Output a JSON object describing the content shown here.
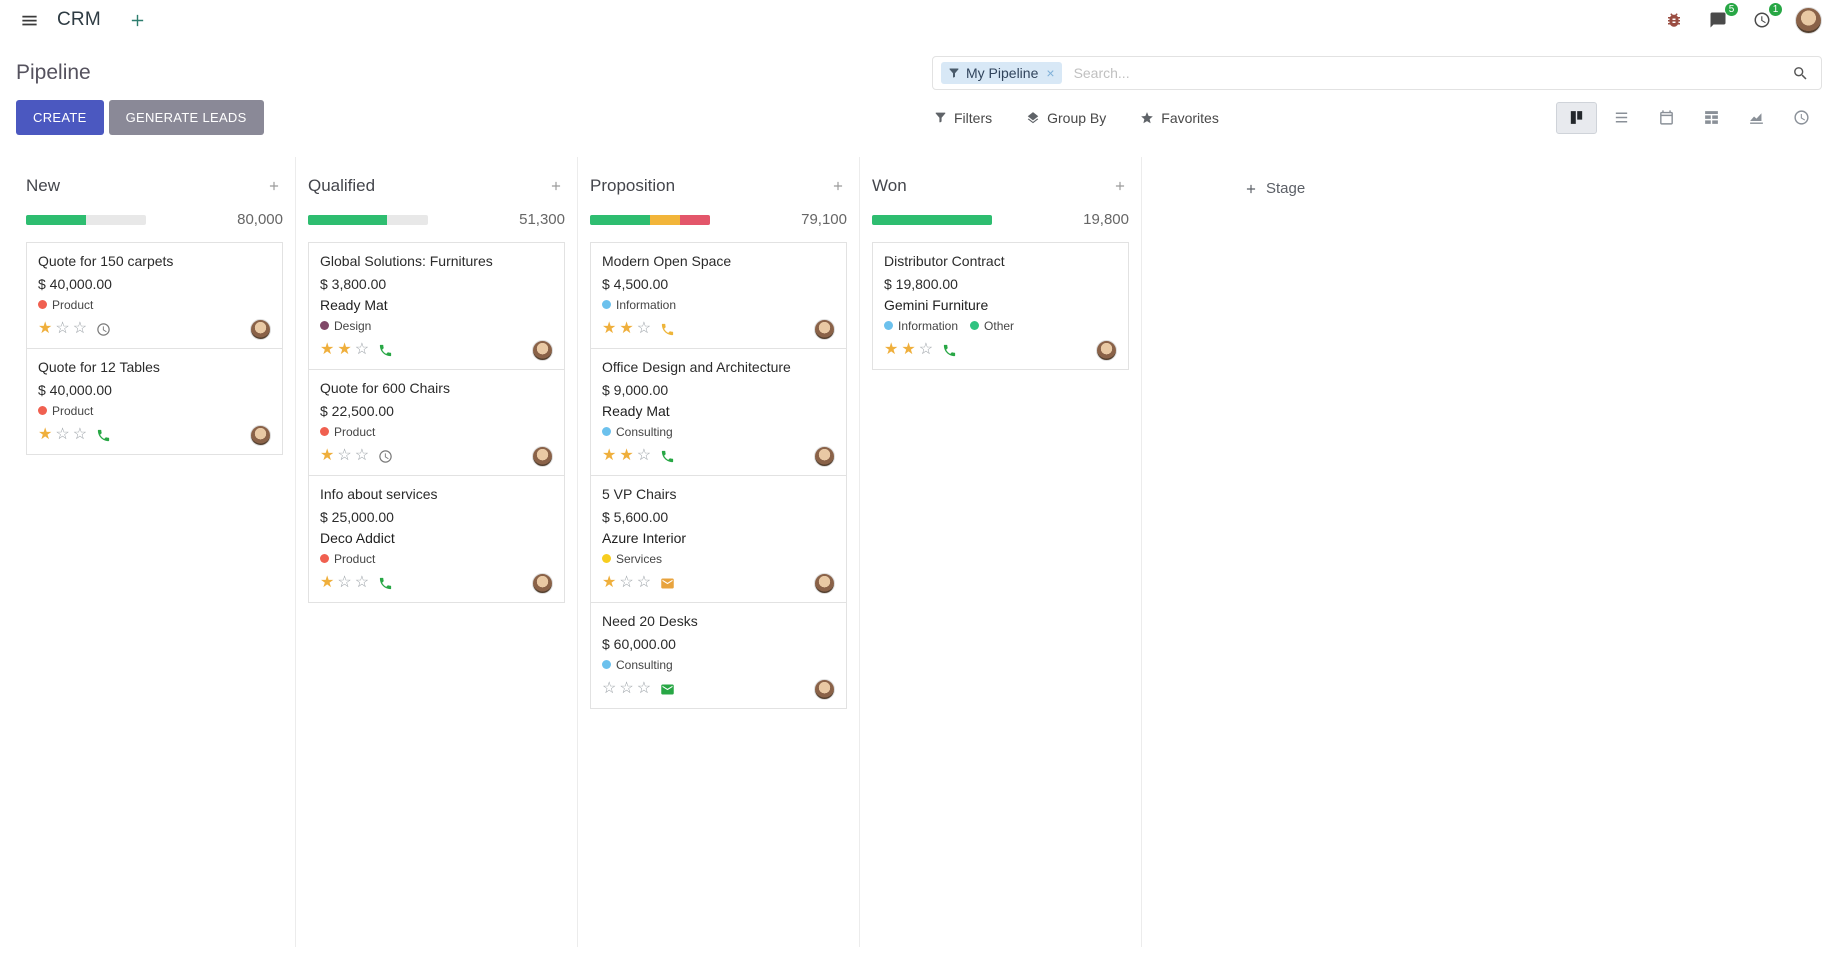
{
  "colors": {
    "accent": "#4b58c0",
    "button_secondary": "#8a8997",
    "badge_green": "#28a745",
    "facet_bg": "#d8e8f6",
    "star_gold": "#efaf3c"
  },
  "topbar": {
    "app_name": "CRM",
    "messages_badge": "5",
    "activities_badge": "1"
  },
  "control_panel": {
    "title": "Pipeline",
    "create_label": "CREATE",
    "generate_leads_label": "GENERATE LEADS",
    "search": {
      "facet_label": "My Pipeline",
      "placeholder": "Search..."
    },
    "filters_label": "Filters",
    "group_by_label": "Group By",
    "favorites_label": "Favorites"
  },
  "kanban": {
    "add_stage_label": "Stage",
    "columns": [
      {
        "name": "New",
        "total": "80,000",
        "progress": [
          {
            "color": "#2ebd70",
            "pct": 50
          }
        ],
        "cards": [
          {
            "title": "Quote for 150 carpets",
            "amount": "$ 40,000.00",
            "partner": "",
            "tags": [
              {
                "label": "Product",
                "color": "#f06050"
              }
            ],
            "stars": 1,
            "activity": {
              "icon": "clock",
              "color": "#7a7a7a"
            }
          },
          {
            "title": "Quote for 12 Tables",
            "amount": "$ 40,000.00",
            "partner": "",
            "tags": [
              {
                "label": "Product",
                "color": "#f06050"
              }
            ],
            "stars": 1,
            "activity": {
              "icon": "phone",
              "color": "#28a745"
            }
          }
        ]
      },
      {
        "name": "Qualified",
        "total": "51,300",
        "progress": [
          {
            "color": "#2ebd70",
            "pct": 66
          }
        ],
        "cards": [
          {
            "title": "Global Solutions: Furnitures",
            "amount": "$ 3,800.00",
            "partner": "Ready Mat",
            "tags": [
              {
                "label": "Design",
                "color": "#814968"
              }
            ],
            "stars": 2,
            "activity": {
              "icon": "phone",
              "color": "#28a745"
            }
          },
          {
            "title": "Quote for 600 Chairs",
            "amount": "$ 22,500.00",
            "partner": "",
            "tags": [
              {
                "label": "Product",
                "color": "#f06050"
              }
            ],
            "stars": 1,
            "activity": {
              "icon": "clock",
              "color": "#7a7a7a"
            }
          },
          {
            "title": "Info about services",
            "amount": "$ 25,000.00",
            "partner": "Deco Addict",
            "tags": [
              {
                "label": "Product",
                "color": "#f06050"
              }
            ],
            "stars": 1,
            "activity": {
              "icon": "phone",
              "color": "#28a745"
            }
          }
        ]
      },
      {
        "name": "Proposition",
        "total": "79,100",
        "progress": [
          {
            "color": "#2ebd70",
            "pct": 50
          },
          {
            "color": "#f2b53a",
            "pct": 25
          },
          {
            "color": "#e3566a",
            "pct": 25
          }
        ],
        "cards": [
          {
            "title": "Modern Open Space",
            "amount": "$ 4,500.00",
            "partner": "",
            "tags": [
              {
                "label": "Information",
                "color": "#6cc1ed"
              }
            ],
            "stars": 2,
            "activity": {
              "icon": "phone",
              "color": "#eeb53a"
            }
          },
          {
            "title": "Office Design and Architecture",
            "amount": "$ 9,000.00",
            "partner": "Ready Mat",
            "tags": [
              {
                "label": "Consulting",
                "color": "#6cc1ed"
              }
            ],
            "stars": 2,
            "activity": {
              "icon": "phone",
              "color": "#28a745"
            }
          },
          {
            "title": "5 VP Chairs",
            "amount": "$ 5,600.00",
            "partner": "Azure Interior",
            "tags": [
              {
                "label": "Services",
                "color": "#f7cd1f"
              }
            ],
            "stars": 1,
            "activity": {
              "icon": "envelope",
              "color": "#e8a33d"
            }
          },
          {
            "title": "Need 20 Desks",
            "amount": "$ 60,000.00",
            "partner": "",
            "tags": [
              {
                "label": "Consulting",
                "color": "#6cc1ed"
              }
            ],
            "stars": 0,
            "activity": {
              "icon": "envelope",
              "color": "#28a745"
            }
          }
        ]
      },
      {
        "name": "Won",
        "total": "19,800",
        "progress": [
          {
            "color": "#2ebd70",
            "pct": 100
          }
        ],
        "cards": [
          {
            "title": "Distributor Contract",
            "amount": "$ 19,800.00",
            "partner": "Gemini Furniture",
            "tags": [
              {
                "label": "Information",
                "color": "#6cc1ed"
              },
              {
                "label": "Other",
                "color": "#30c381"
              }
            ],
            "stars": 2,
            "activity": {
              "icon": "phone",
              "color": "#28a745"
            }
          }
        ]
      }
    ]
  }
}
